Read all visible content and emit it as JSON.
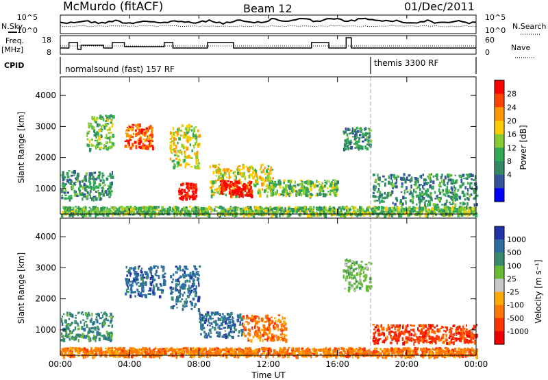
{
  "header": {
    "station": "McMurdo (fitACF)",
    "beam": "Beam 12",
    "date": "01/Dec/2011"
  },
  "summary_panels": {
    "nsky_label": "N.Sky",
    "nsearch_label": "N.Search",
    "noise_ticks": [
      "10^5",
      "10^0"
    ],
    "freq_label": "Freq.",
    "freq_unit": "[MHz]",
    "freq_ticks": [
      "18",
      "8"
    ],
    "nave_label": "Nave",
    "nave_ticks": [
      "60",
      "0"
    ],
    "cpid_label": "CPID",
    "cpid_segments": [
      {
        "label": "normalsound (fast) 157 RF",
        "start_hour": 0
      },
      {
        "label": "themis 3300 RF",
        "start_hour": 18
      }
    ]
  },
  "axes": {
    "x_ticks": [
      "00:00",
      "04:00",
      "08:00",
      "12:00",
      "16:00",
      "20:00",
      "00:00"
    ],
    "xlabel": "Time UT",
    "ylabel": "Slant Range [km]",
    "y_ticks": [
      "4000",
      "3000",
      "2000",
      "1000"
    ]
  },
  "colorbars": {
    "power": {
      "label": "Power [dB]",
      "ticks": [
        "28",
        "24",
        "20",
        "16",
        "12",
        "8",
        "4"
      ],
      "colors": [
        "#ff0000",
        "#ff4400",
        "#ff9900",
        "#ffcc00",
        "#88cc33",
        "#33aa55",
        "#338866",
        "#335599",
        "#0000ff"
      ]
    },
    "velocity": {
      "label": "Velocity [m s⁻¹]",
      "ticks": [
        "1000",
        "500",
        "100",
        "25",
        "-25",
        "-100",
        "-500",
        "-1000"
      ],
      "colors": [
        "#2233aa",
        "#2d6fa0",
        "#3a8a6e",
        "#66bb33",
        "#c8c8c8",
        "#ffaa00",
        "#ff7700",
        "#ff3300",
        "#ee0000"
      ]
    }
  },
  "chart_data": [
    {
      "type": "heatmap",
      "title": "Power [dB]",
      "x_range_hours": [
        0,
        24
      ],
      "y_range_km": [
        180,
        4600
      ],
      "y_ticks": [
        1000,
        2000,
        3000,
        4000
      ],
      "color_scale": [
        4,
        8,
        12,
        16,
        20,
        24,
        28
      ],
      "echo_regions": [
        {
          "t": [
            0.0,
            3.0
          ],
          "r": [
            700,
            1600
          ],
          "level": 8
        },
        {
          "t": [
            1.5,
            3.0
          ],
          "r": [
            2300,
            3400
          ],
          "level": 12
        },
        {
          "t": [
            3.7,
            5.3
          ],
          "r": [
            2300,
            3100
          ],
          "level": 24
        },
        {
          "t": [
            6.3,
            8.0
          ],
          "r": [
            1700,
            3100
          ],
          "level": 16
        },
        {
          "t": [
            6.8,
            7.8
          ],
          "r": [
            700,
            1200
          ],
          "level": 28
        },
        {
          "t": [
            8.6,
            12.3
          ],
          "r": [
            800,
            1800
          ],
          "level": 16
        },
        {
          "t": [
            9.2,
            11.0
          ],
          "r": [
            800,
            1300
          ],
          "level": 28
        },
        {
          "t": [
            12.0,
            16.0
          ],
          "r": [
            800,
            1300
          ],
          "level": 12
        },
        {
          "t": [
            16.3,
            17.9
          ],
          "r": [
            2300,
            3000
          ],
          "level": 8
        },
        {
          "t": [
            18.0,
            24.0
          ],
          "r": [
            500,
            1500
          ],
          "level": 8
        },
        {
          "t": [
            0.0,
            24.0
          ],
          "r": [
            180,
            450
          ],
          "level": 12
        }
      ]
    },
    {
      "type": "heatmap",
      "title": "Velocity [m s⁻¹]",
      "x_range_hours": [
        0,
        24
      ],
      "y_range_km": [
        180,
        4600
      ],
      "y_ticks": [
        1000,
        2000,
        3000,
        4000
      ],
      "color_scale": [
        -1000,
        -500,
        -100,
        -25,
        25,
        100,
        500,
        1000
      ],
      "echo_regions": [
        {
          "t": [
            0.0,
            3.0
          ],
          "r": [
            700,
            1600
          ],
          "velocity": 100
        },
        {
          "t": [
            3.7,
            6.0
          ],
          "r": [
            2100,
            3100
          ],
          "velocity": 500
        },
        {
          "t": [
            6.3,
            8.0
          ],
          "r": [
            1700,
            3100
          ],
          "velocity": 500
        },
        {
          "t": [
            8.0,
            10.5
          ],
          "r": [
            800,
            1600
          ],
          "velocity": 500
        },
        {
          "t": [
            10.5,
            13.0
          ],
          "r": [
            700,
            1500
          ],
          "velocity": -100
        },
        {
          "t": [
            16.3,
            17.9
          ],
          "r": [
            2300,
            3300
          ],
          "velocity": 25
        },
        {
          "t": [
            18.0,
            24.0
          ],
          "r": [
            600,
            1200
          ],
          "velocity": -500
        },
        {
          "t": [
            0.0,
            24.0
          ],
          "r": [
            180,
            450
          ],
          "velocity": -100
        }
      ]
    }
  ]
}
